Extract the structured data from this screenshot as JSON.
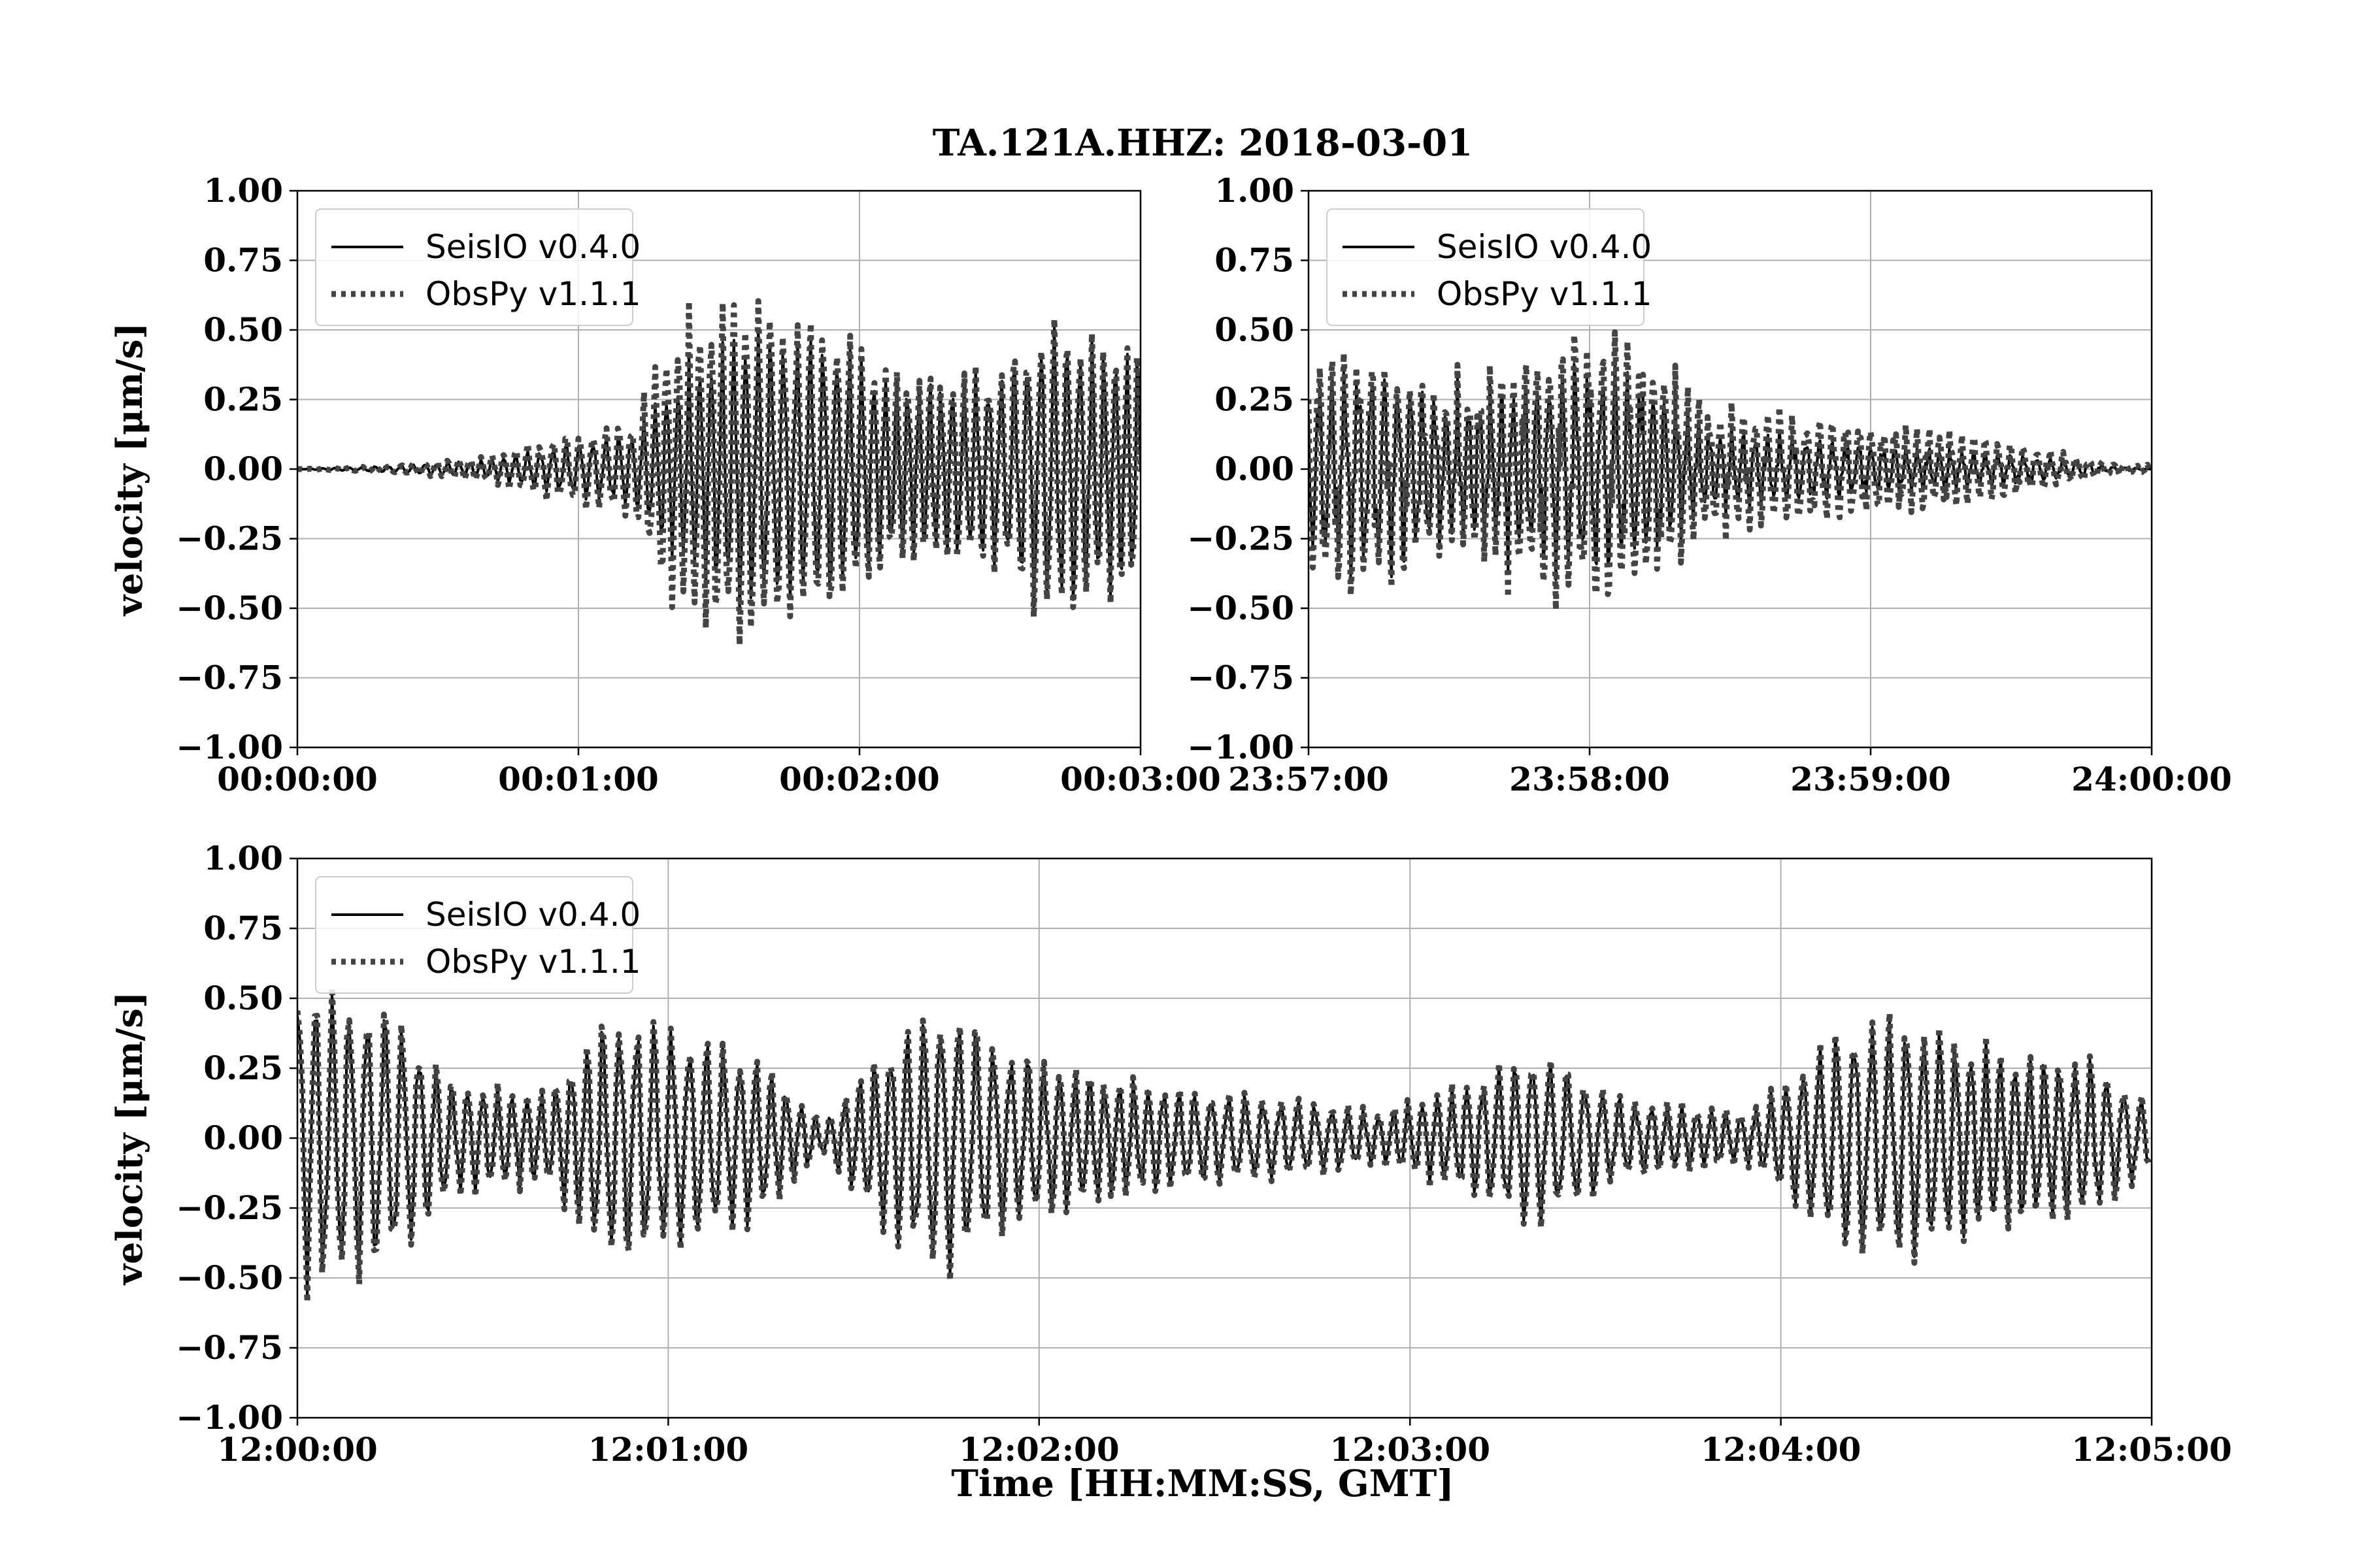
{
  "figure": {
    "title": "TA.121A.HHZ: 2018-03-01",
    "xlabel": "Time [HH:MM:SS, GMT]",
    "ylabel": "velocity [μm/s]"
  },
  "colors": {
    "seisio": "#000000",
    "obspy": "#444444",
    "grid": "#b0b0b0",
    "legend_border": "#cccccc"
  },
  "chart_data": [
    {
      "type": "line",
      "panel": "top-left",
      "xlabel": "",
      "ylabel": "velocity [μm/s]",
      "xlim_seconds": [
        0,
        180
      ],
      "ylim": [
        -1.0,
        1.0
      ],
      "xticks": [
        "00:00:00",
        "00:01:00",
        "00:02:00",
        "00:03:00"
      ],
      "yticks": [
        "1.00",
        "0.75",
        "0.50",
        "0.25",
        "0.00",
        "−0.25",
        "−0.50",
        "−0.75",
        "−1.00"
      ],
      "grid": true,
      "legend": "top-left",
      "series": [
        {
          "name": "SeisIO v0.4.0",
          "style": "solid",
          "envelope": [
            [
              0,
              0.0
            ],
            [
              20,
              0.01
            ],
            [
              40,
              0.03
            ],
            [
              55,
              0.07
            ],
            [
              65,
              0.1
            ],
            [
              72,
              0.12
            ],
            [
              78,
              0.25
            ],
            [
              85,
              0.35
            ],
            [
              95,
              0.45
            ],
            [
              105,
              0.42
            ],
            [
              115,
              0.4
            ],
            [
              125,
              0.3
            ],
            [
              135,
              0.28
            ],
            [
              150,
              0.3
            ],
            [
              160,
              0.45
            ],
            [
              170,
              0.4
            ],
            [
              180,
              0.38
            ]
          ]
        },
        {
          "name": "ObsPy v1.1.1",
          "style": "dotted",
          "envelope": [
            [
              0,
              0.0
            ],
            [
              20,
              0.01
            ],
            [
              40,
              0.04
            ],
            [
              55,
              0.1
            ],
            [
              65,
              0.13
            ],
            [
              72,
              0.16
            ],
            [
              78,
              0.4
            ],
            [
              85,
              0.5
            ],
            [
              95,
              0.56
            ],
            [
              105,
              0.48
            ],
            [
              115,
              0.45
            ],
            [
              125,
              0.33
            ],
            [
              135,
              0.3
            ],
            [
              150,
              0.32
            ],
            [
              160,
              0.48
            ],
            [
              170,
              0.42
            ],
            [
              180,
              0.4
            ]
          ]
        }
      ]
    },
    {
      "type": "line",
      "panel": "top-right",
      "xlabel": "",
      "ylabel": "",
      "xlim_seconds": [
        0,
        180
      ],
      "ylim": [
        -1.0,
        1.0
      ],
      "xticks": [
        "23:57:00",
        "23:58:00",
        "23:59:00",
        "24:00:00"
      ],
      "yticks": [
        "1.00",
        "0.75",
        "0.50",
        "0.25",
        "0.00",
        "−0.25",
        "−0.50",
        "−0.75",
        "−1.00"
      ],
      "grid": true,
      "legend": "top-left",
      "series": [
        {
          "name": "SeisIO v0.4.0",
          "style": "solid",
          "envelope": [
            [
              0,
              0.25
            ],
            [
              10,
              0.3
            ],
            [
              20,
              0.28
            ],
            [
              30,
              0.2
            ],
            [
              45,
              0.25
            ],
            [
              55,
              0.3
            ],
            [
              65,
              0.3
            ],
            [
              75,
              0.25
            ],
            [
              85,
              0.12
            ],
            [
              100,
              0.1
            ],
            [
              115,
              0.08
            ],
            [
              130,
              0.06
            ],
            [
              145,
              0.05
            ],
            [
              160,
              0.03
            ],
            [
              170,
              0.01
            ],
            [
              180,
              0.0
            ]
          ]
        },
        {
          "name": "ObsPy v1.1.1",
          "style": "dotted",
          "envelope": [
            [
              0,
              0.32
            ],
            [
              10,
              0.35
            ],
            [
              20,
              0.3
            ],
            [
              30,
              0.22
            ],
            [
              45,
              0.32
            ],
            [
              55,
              0.38
            ],
            [
              65,
              0.4
            ],
            [
              75,
              0.32
            ],
            [
              85,
              0.18
            ],
            [
              100,
              0.16
            ],
            [
              115,
              0.14
            ],
            [
              130,
              0.12
            ],
            [
              145,
              0.09
            ],
            [
              160,
              0.05
            ],
            [
              170,
              0.02
            ],
            [
              180,
              0.01
            ]
          ]
        }
      ]
    },
    {
      "type": "line",
      "panel": "bottom",
      "xlabel": "Time [HH:MM:SS, GMT]",
      "ylabel": "velocity [μm/s]",
      "xlim_seconds": [
        0,
        300
      ],
      "ylim": [
        -1.0,
        1.0
      ],
      "xticks": [
        "12:00:00",
        "12:01:00",
        "12:02:00",
        "12:03:00",
        "12:04:00",
        "12:05:00"
      ],
      "yticks": [
        "1.00",
        "0.75",
        "0.50",
        "0.25",
        "0.00",
        "−0.25",
        "−0.50",
        "−0.75",
        "−1.00"
      ],
      "grid": true,
      "legend": "top-left",
      "series": [
        {
          "name": "SeisIO v0.4.0",
          "style": "solid",
          "envelope": [
            [
              0,
              0.48
            ],
            [
              15,
              0.4
            ],
            [
              25,
              0.18
            ],
            [
              40,
              0.14
            ],
            [
              50,
              0.38
            ],
            [
              60,
              0.35
            ],
            [
              75,
              0.25
            ],
            [
              85,
              0.05
            ],
            [
              95,
              0.3
            ],
            [
              105,
              0.42
            ],
            [
              115,
              0.28
            ],
            [
              130,
              0.2
            ],
            [
              145,
              0.15
            ],
            [
              160,
              0.12
            ],
            [
              175,
              0.08
            ],
            [
              190,
              0.18
            ],
            [
              200,
              0.28
            ],
            [
              215,
              0.12
            ],
            [
              235,
              0.08
            ],
            [
              250,
              0.35
            ],
            [
              260,
              0.38
            ],
            [
              275,
              0.28
            ],
            [
              290,
              0.25
            ],
            [
              300,
              0.1
            ]
          ]
        },
        {
          "name": "ObsPy v1.1.1",
          "style": "dotted",
          "envelope": [
            [
              0,
              0.5
            ],
            [
              15,
              0.42
            ],
            [
              25,
              0.19
            ],
            [
              40,
              0.15
            ],
            [
              50,
              0.4
            ],
            [
              60,
              0.36
            ],
            [
              75,
              0.26
            ],
            [
              85,
              0.05
            ],
            [
              95,
              0.31
            ],
            [
              105,
              0.44
            ],
            [
              115,
              0.29
            ],
            [
              130,
              0.21
            ],
            [
              145,
              0.16
            ],
            [
              160,
              0.13
            ],
            [
              175,
              0.09
            ],
            [
              190,
              0.19
            ],
            [
              200,
              0.29
            ],
            [
              215,
              0.13
            ],
            [
              235,
              0.09
            ],
            [
              250,
              0.36
            ],
            [
              260,
              0.4
            ],
            [
              275,
              0.29
            ],
            [
              290,
              0.26
            ],
            [
              300,
              0.11
            ]
          ]
        }
      ]
    }
  ]
}
